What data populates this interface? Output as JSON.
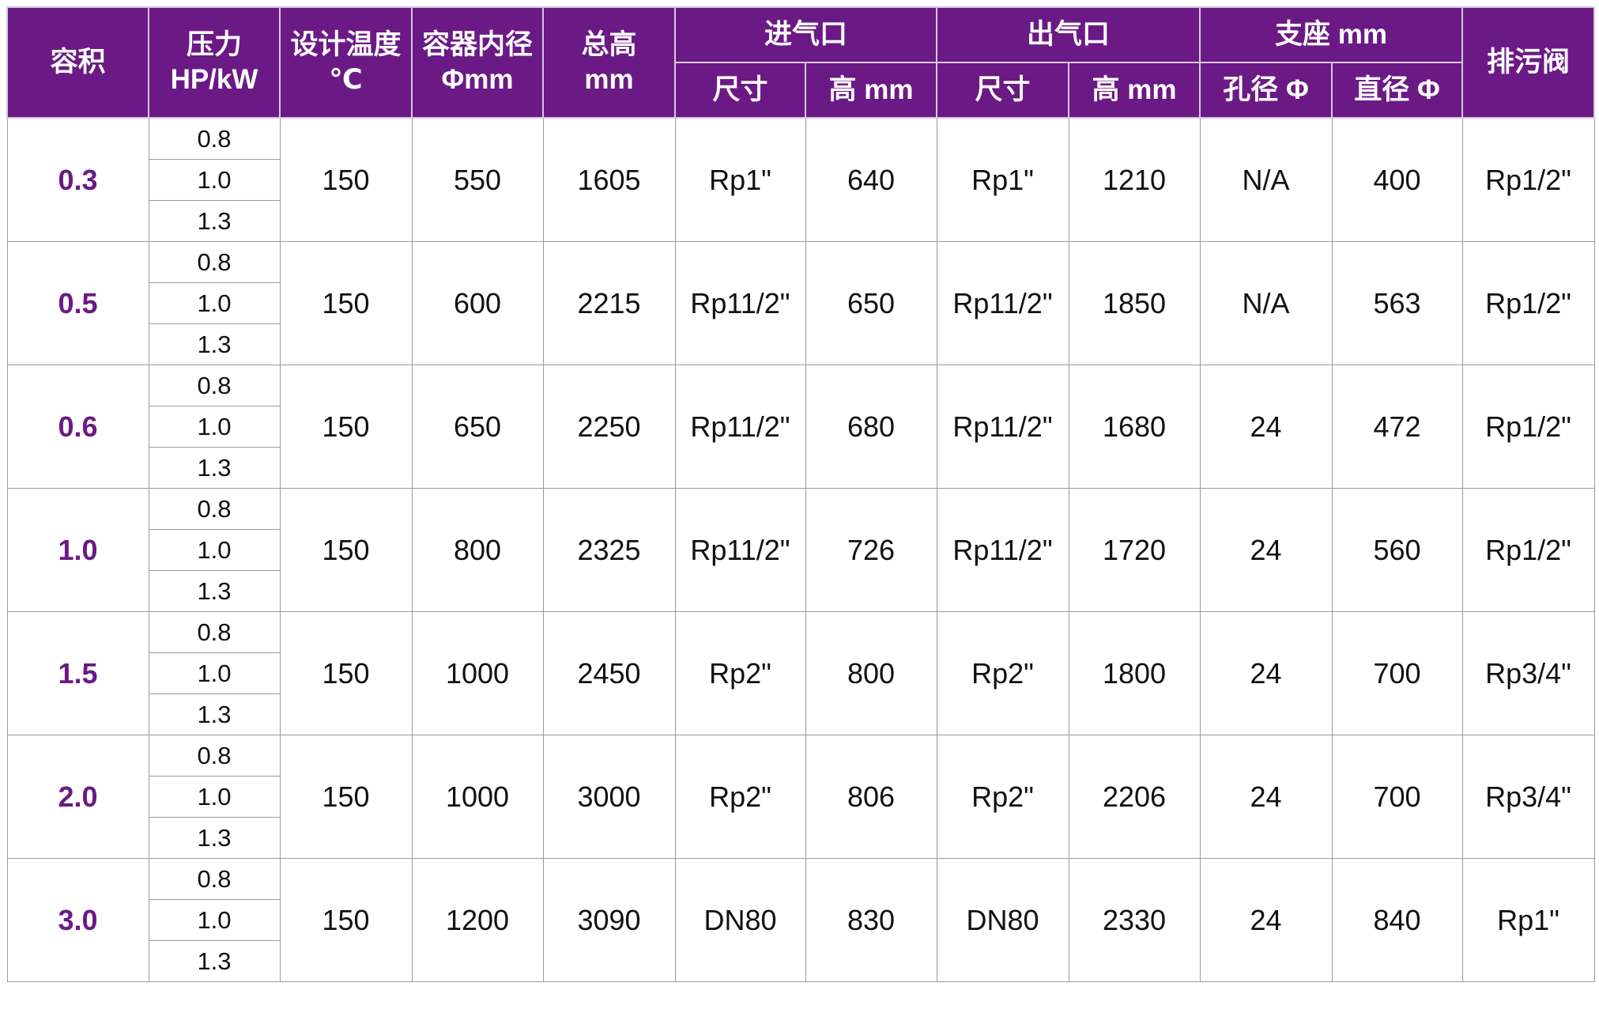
{
  "accent_color": "#6b1a85",
  "header": {
    "volume": "容积",
    "pressure": [
      "压力",
      "HP/kW"
    ],
    "design_temp": [
      "设计温度",
      "℃"
    ],
    "inner_diameter": [
      "容器内径",
      "Φmm"
    ],
    "total_height": [
      "总高",
      "mm"
    ],
    "inlet": "进气口",
    "outlet": "出气口",
    "support": "支座 mm",
    "drain_valve": "排污阀",
    "sub": {
      "inlet_size": "尺寸",
      "inlet_height": "高 mm",
      "outlet_size": "尺寸",
      "outlet_height": "高 mm",
      "hole_dia": "孔径 Φ",
      "diameter": "直径 Φ"
    }
  },
  "pressures": [
    "0.8",
    "1.0",
    "1.3"
  ],
  "rows": [
    {
      "volume": "0.3",
      "temp": "150",
      "inner_dia": "550",
      "height": "1605",
      "inlet_size": "Rp1\"",
      "inlet_h": "640",
      "outlet_size": "Rp1\"",
      "outlet_h": "1210",
      "hole": "N/A",
      "dia": "400",
      "drain": "Rp1/2\""
    },
    {
      "volume": "0.5",
      "temp": "150",
      "inner_dia": "600",
      "height": "2215",
      "inlet_size": "Rp11/2\"",
      "inlet_h": "650",
      "outlet_size": "Rp11/2\"",
      "outlet_h": "1850",
      "hole": "N/A",
      "dia": "563",
      "drain": "Rp1/2\""
    },
    {
      "volume": "0.6",
      "temp": "150",
      "inner_dia": "650",
      "height": "2250",
      "inlet_size": "Rp11/2\"",
      "inlet_h": "680",
      "outlet_size": "Rp11/2\"",
      "outlet_h": "1680",
      "hole": "24",
      "dia": "472",
      "drain": "Rp1/2\""
    },
    {
      "volume": "1.0",
      "temp": "150",
      "inner_dia": "800",
      "height": "2325",
      "inlet_size": "Rp11/2\"",
      "inlet_h": "726",
      "outlet_size": "Rp11/2\"",
      "outlet_h": "1720",
      "hole": "24",
      "dia": "560",
      "drain": "Rp1/2\""
    },
    {
      "volume": "1.5",
      "temp": "150",
      "inner_dia": "1000",
      "height": "2450",
      "inlet_size": "Rp2\"",
      "inlet_h": "800",
      "outlet_size": "Rp2\"",
      "outlet_h": "1800",
      "hole": "24",
      "dia": "700",
      "drain": "Rp3/4\""
    },
    {
      "volume": "2.0",
      "temp": "150",
      "inner_dia": "1000",
      "height": "3000",
      "inlet_size": "Rp2\"",
      "inlet_h": "806",
      "outlet_size": "Rp2\"",
      "outlet_h": "2206",
      "hole": "24",
      "dia": "700",
      "drain": "Rp3/4\""
    },
    {
      "volume": "3.0",
      "temp": "150",
      "inner_dia": "1200",
      "height": "3090",
      "inlet_size": "DN80",
      "inlet_h": "830",
      "outlet_size": "DN80",
      "outlet_h": "2330",
      "hole": "24",
      "dia": "840",
      "drain": "Rp1\""
    }
  ]
}
